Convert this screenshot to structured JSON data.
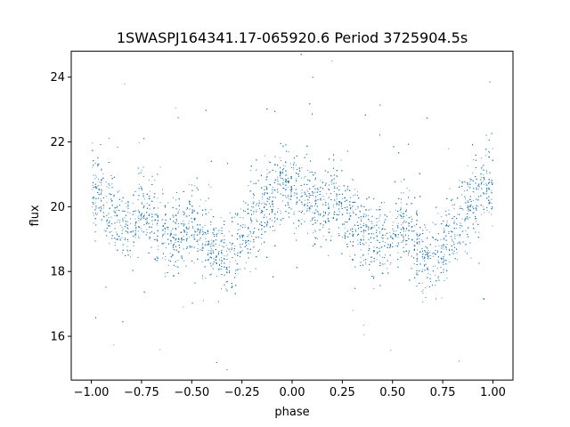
{
  "chart_data": {
    "type": "scatter",
    "title": "1SWASPJ164341.17-065920.6 Period 3725904.5s",
    "xlabel": "phase",
    "ylabel": "flux",
    "xlim": [
      -1.1,
      1.1
    ],
    "ylim": [
      14.65,
      24.8
    ],
    "xticks": [
      -1.0,
      -0.75,
      -0.5,
      -0.25,
      0.0,
      0.25,
      0.5,
      0.75,
      1.0
    ],
    "xtick_labels": [
      "−1.00",
      "−0.75",
      "−0.50",
      "−0.25",
      "0.00",
      "0.25",
      "0.50",
      "0.75",
      "1.00"
    ],
    "yticks": [
      16,
      18,
      20,
      22,
      24
    ],
    "ytick_labels": [
      "16",
      "18",
      "20",
      "22",
      "24"
    ],
    "grid": false,
    "marker_color": "#1f77b4",
    "series": [
      {
        "x": [
          -1.0,
          -0.95,
          -0.9,
          -0.85,
          -0.8,
          -0.75,
          -0.7,
          -0.65,
          -0.6,
          -0.55,
          -0.5,
          -0.45,
          -0.4,
          -0.35,
          -0.3,
          -0.25,
          -0.2,
          -0.15,
          -0.1,
          -0.05,
          0.0,
          0.05,
          0.1,
          0.15,
          0.2,
          0.25,
          0.3,
          0.35,
          0.4,
          0.45,
          0.5,
          0.55,
          0.6,
          0.65,
          0.7,
          0.75,
          0.8,
          0.85,
          0.9,
          0.95,
          1.0
        ],
        "y": [
          20.6,
          20.3,
          20.0,
          19.6,
          19.4,
          20.1,
          19.7,
          19.1,
          18.9,
          19.3,
          19.6,
          19.2,
          18.8,
          18.4,
          18.5,
          19.0,
          19.6,
          20.0,
          20.4,
          20.8,
          20.5,
          20.4,
          20.1,
          20.0,
          20.3,
          19.9,
          19.6,
          19.3,
          19.0,
          18.9,
          19.2,
          19.5,
          19.1,
          18.4,
          18.3,
          18.8,
          19.4,
          19.8,
          20.2,
          20.7,
          20.6
        ]
      }
    ]
  }
}
